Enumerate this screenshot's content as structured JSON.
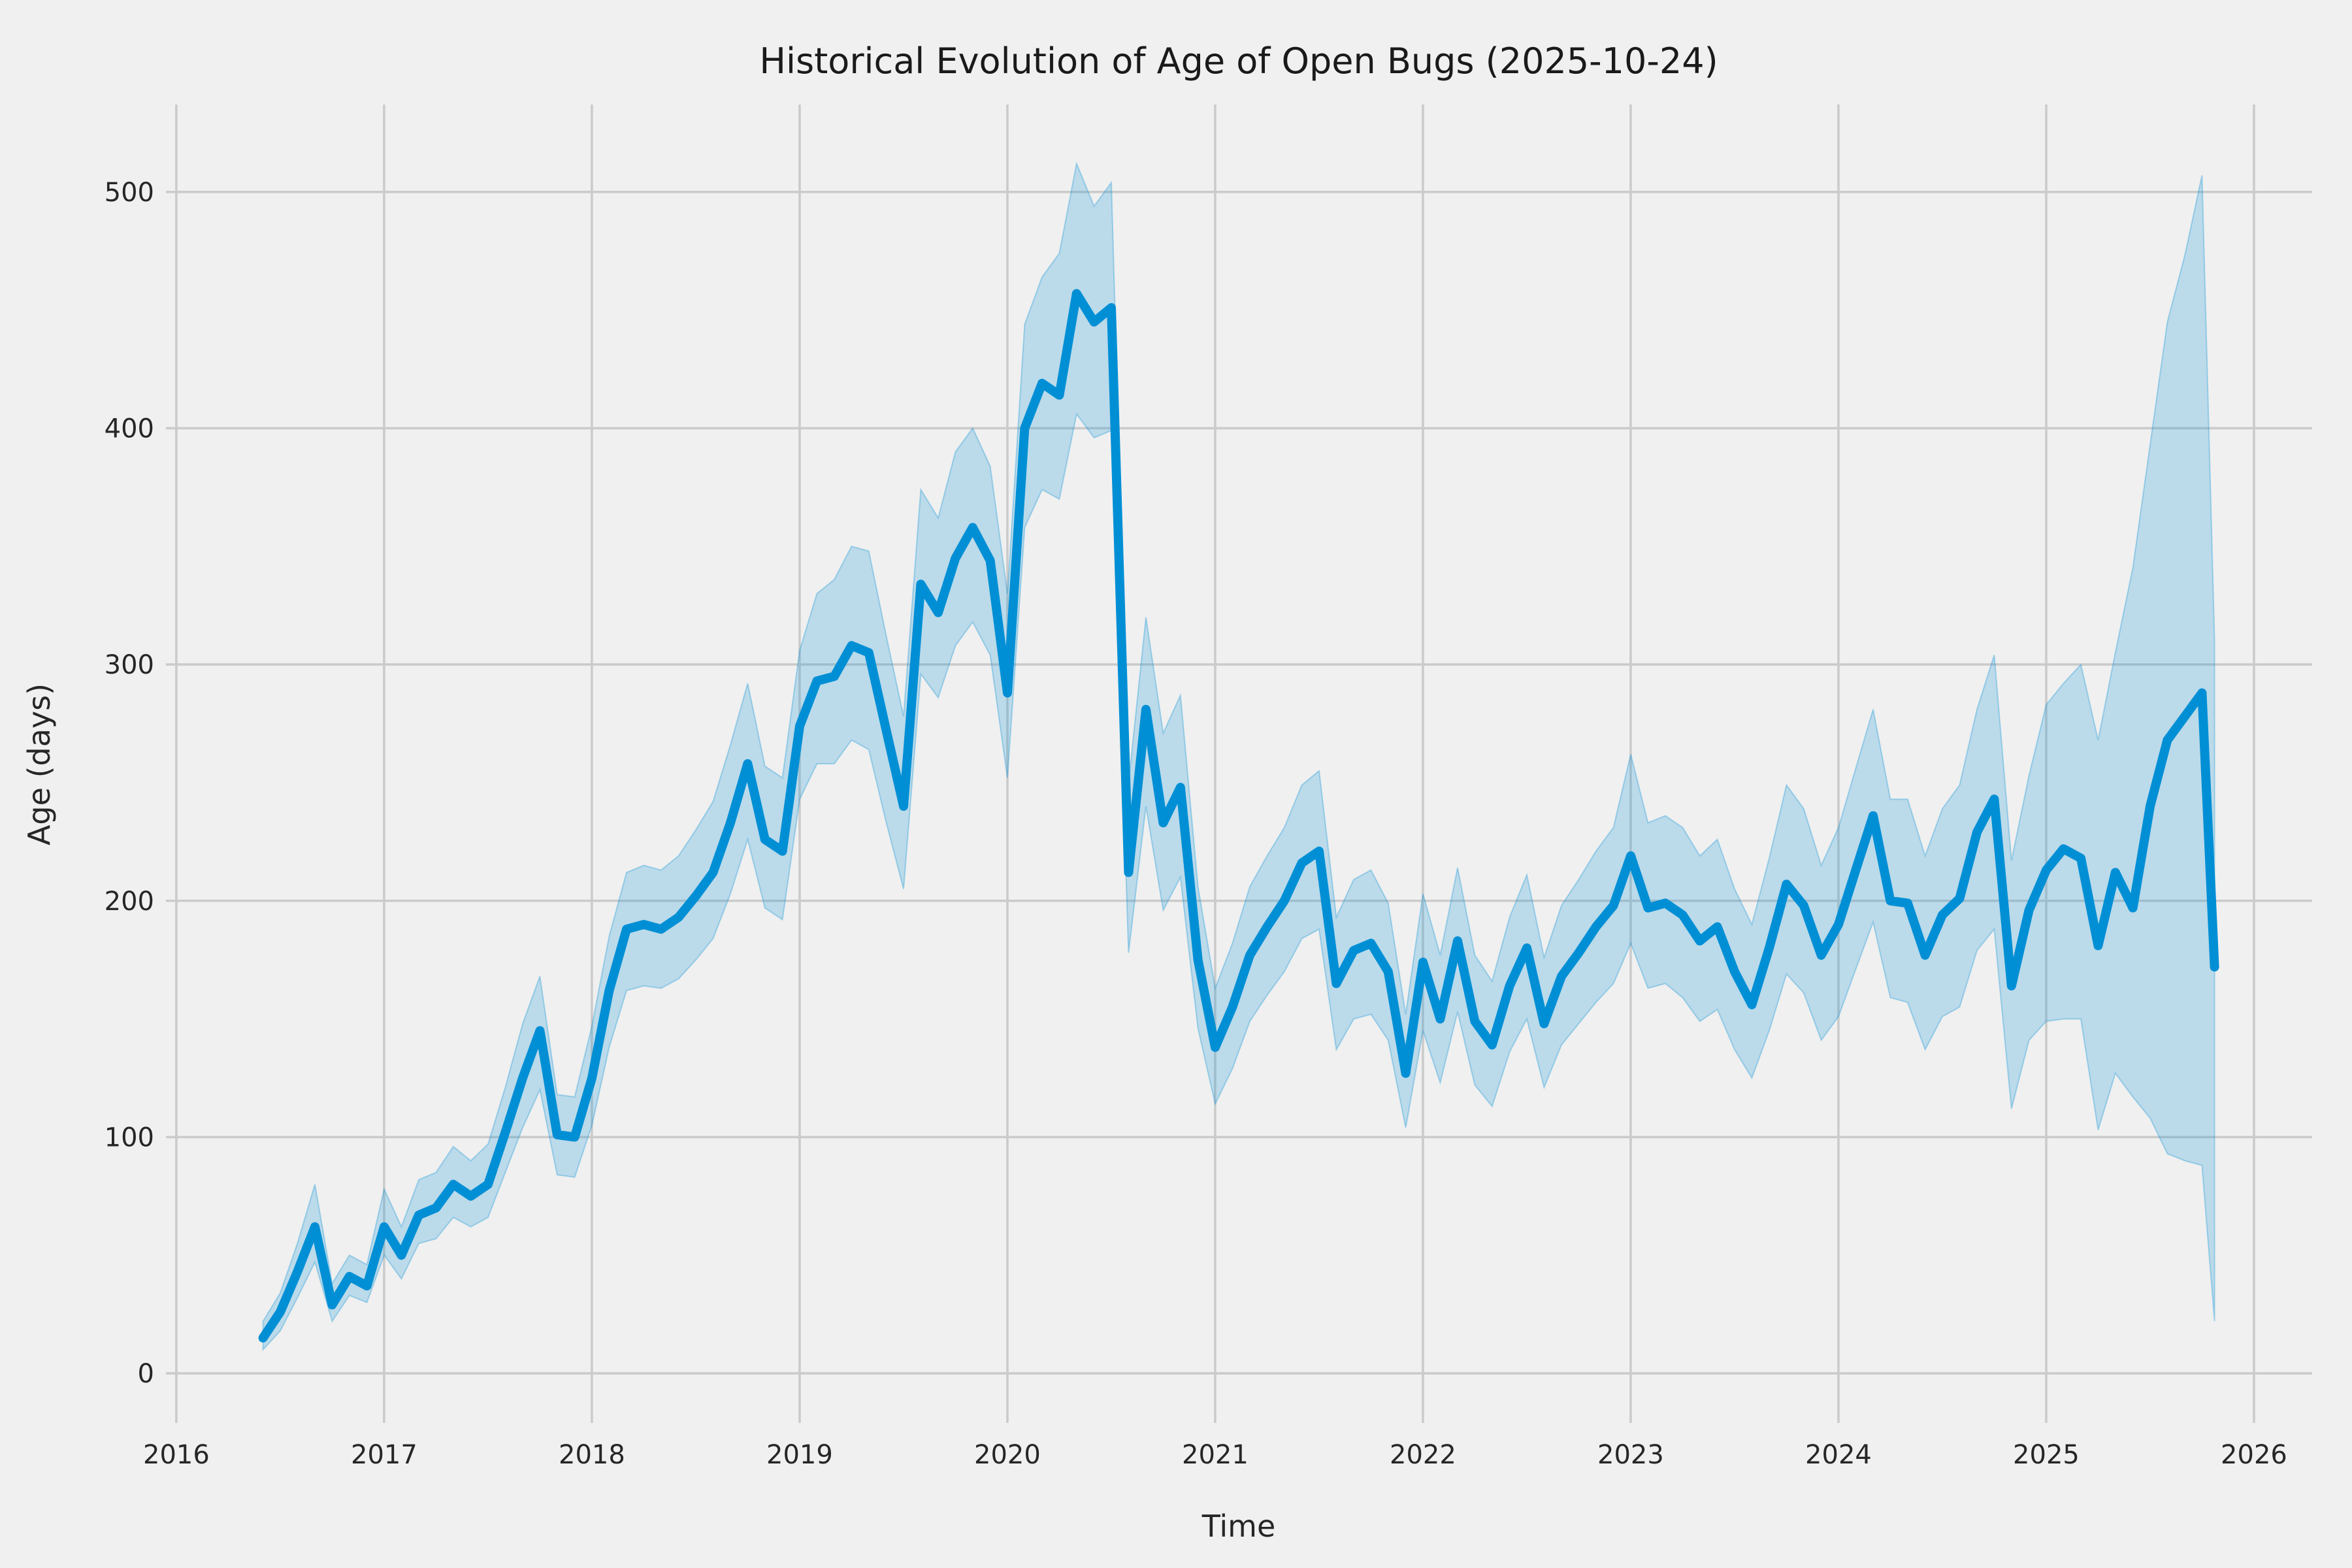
{
  "title": "Historical Evolution of Age of Open Bugs (2025-10-24)",
  "chart_data": {
    "type": "line",
    "title": "Historical Evolution of Age of Open Bugs (2025-10-24)",
    "xlabel": "Time",
    "ylabel": "Age (days)",
    "legend_position": "none",
    "grid": true,
    "style": "fivethirtyeight",
    "xlim": [
      2015.95,
      2026.28
    ],
    "ylim": [
      -21,
      537
    ],
    "xticks": [
      2016,
      2017,
      2018,
      2019,
      2020,
      2021,
      2022,
      2023,
      2024,
      2025,
      2026
    ],
    "yticks": [
      0,
      100,
      200,
      300,
      400,
      500
    ],
    "colors": {
      "line": "#008fd5",
      "band_fill": "#008fd5",
      "band_opacity": 0.22,
      "band_edge": "rgba(0,143,213,0.30)",
      "background": "#f0f0f0",
      "gridline": "#cbcbcb",
      "text": "#262626"
    },
    "x": [
      2016.417,
      2016.5,
      2016.583,
      2016.667,
      2016.75,
      2016.833,
      2016.917,
      2017.0,
      2017.083,
      2017.167,
      2017.25,
      2017.333,
      2017.417,
      2017.5,
      2017.583,
      2017.667,
      2017.75,
      2017.833,
      2017.917,
      2018.0,
      2018.083,
      2018.167,
      2018.25,
      2018.333,
      2018.417,
      2018.5,
      2018.583,
      2018.667,
      2018.75,
      2018.833,
      2018.917,
      2019.0,
      2019.083,
      2019.167,
      2019.25,
      2019.333,
      2019.417,
      2019.5,
      2019.583,
      2019.667,
      2019.75,
      2019.833,
      2019.917,
      2020.0,
      2020.083,
      2020.167,
      2020.25,
      2020.333,
      2020.417,
      2020.5,
      2020.583,
      2020.667,
      2020.75,
      2020.833,
      2020.917,
      2021.0,
      2021.083,
      2021.167,
      2021.25,
      2021.333,
      2021.417,
      2021.5,
      2021.583,
      2021.667,
      2021.75,
      2021.833,
      2021.917,
      2022.0,
      2022.083,
      2022.167,
      2022.25,
      2022.333,
      2022.417,
      2022.5,
      2022.583,
      2022.667,
      2022.75,
      2022.833,
      2022.917,
      2023.0,
      2023.083,
      2023.167,
      2023.25,
      2023.333,
      2023.417,
      2023.5,
      2023.583,
      2023.667,
      2023.75,
      2023.833,
      2023.917,
      2024.0,
      2024.083,
      2024.167,
      2024.25,
      2024.333,
      2024.417,
      2024.5,
      2024.583,
      2024.667,
      2024.75,
      2024.833,
      2024.917,
      2025.0,
      2025.083,
      2025.167,
      2025.25,
      2025.333,
      2025.417,
      2025.5,
      2025.583,
      2025.667,
      2025.75,
      2025.81
    ],
    "series": [
      {
        "name": "mean_age_days",
        "values": [
          15,
          26,
          43,
          62,
          29,
          41,
          37,
          62,
          50,
          67,
          70,
          80,
          75,
          80,
          102,
          125,
          145,
          101,
          100,
          125,
          162,
          188,
          190,
          188,
          193,
          202,
          212,
          233,
          258,
          226,
          221,
          274,
          293,
          295,
          308,
          305,
          272,
          240,
          334,
          322,
          345,
          358,
          344,
          288,
          400,
          419,
          414,
          457,
          445,
          451,
          212,
          281,
          233,
          248,
          175,
          138,
          155,
          177,
          189,
          200,
          216,
          221,
          165,
          179,
          182,
          170,
          127,
          174,
          150,
          183,
          149,
          139,
          164,
          180,
          148,
          168,
          178,
          189,
          198,
          219,
          197,
          199,
          194,
          183,
          189,
          170,
          156,
          180,
          207,
          198,
          177,
          190,
          213,
          236,
          200,
          199,
          177,
          194,
          201,
          229,
          243,
          164,
          196,
          213,
          222,
          218,
          181,
          212,
          197,
          240,
          268,
          278,
          288,
          172
        ]
      },
      {
        "name": "band_lower",
        "values": [
          10,
          18,
          32,
          47,
          22,
          33,
          30,
          50,
          40,
          55,
          57,
          66,
          62,
          66,
          85,
          104,
          120,
          84,
          83,
          105,
          138,
          162,
          164,
          163,
          167,
          175,
          184,
          203,
          226,
          197,
          192,
          243,
          258,
          258,
          268,
          264,
          233,
          205,
          296,
          286,
          308,
          318,
          304,
          252,
          358,
          374,
          370,
          406,
          396,
          399,
          178,
          240,
          196,
          210,
          146,
          114,
          129,
          149,
          160,
          170,
          184,
          188,
          137,
          150,
          152,
          141,
          104,
          145,
          123,
          153,
          122,
          113,
          136,
          150,
          121,
          139,
          148,
          157,
          165,
          182,
          163,
          165,
          159,
          149,
          154,
          137,
          125,
          145,
          169,
          161,
          141,
          151,
          171,
          191,
          159,
          157,
          137,
          151,
          155,
          179,
          188,
          112,
          141,
          149,
          150,
          150,
          103,
          127,
          117,
          108,
          93,
          90,
          88,
          22
        ]
      },
      {
        "name": "band_upper",
        "values": [
          22,
          34,
          55,
          80,
          38,
          50,
          46,
          78,
          62,
          82,
          85,
          96,
          90,
          97,
          121,
          148,
          168,
          118,
          117,
          147,
          185,
          212,
          215,
          213,
          219,
          230,
          242,
          266,
          292,
          257,
          252,
          306,
          330,
          336,
          350,
          348,
          312,
          278,
          374,
          362,
          390,
          400,
          384,
          330,
          444,
          464,
          474,
          512,
          494,
          504,
          250,
          320,
          271,
          287,
          206,
          163,
          182,
          206,
          219,
          231,
          249,
          255,
          193,
          209,
          213,
          199,
          152,
          203,
          177,
          214,
          177,
          166,
          193,
          211,
          176,
          198,
          209,
          221,
          231,
          262,
          233,
          236,
          231,
          219,
          226,
          205,
          190,
          218,
          249,
          239,
          215,
          231,
          256,
          281,
          243,
          243,
          219,
          239,
          249,
          281,
          304,
          217,
          253,
          283,
          292,
          300,
          268,
          305,
          341,
          393,
          445,
          473,
          507,
          310
        ]
      }
    ]
  }
}
